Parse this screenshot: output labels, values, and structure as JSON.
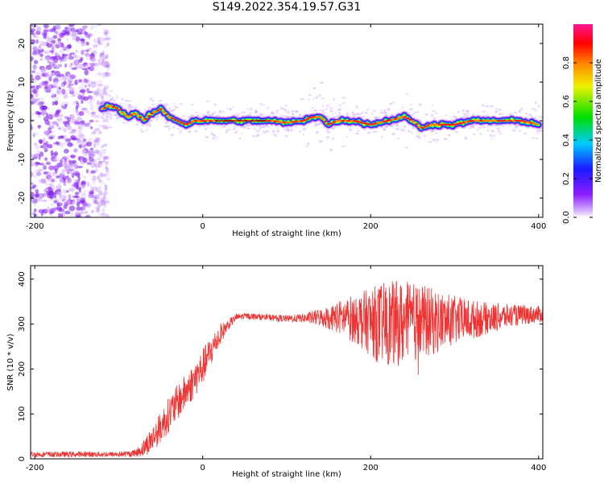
{
  "title": "S149.2022.354.19.57.G31",
  "chart_data": [
    {
      "type": "heatmap",
      "xlabel": "Height of straight line (km)",
      "ylabel": "Frequency (Hz)",
      "xlim": [
        -205,
        405
      ],
      "ylim": [
        -25,
        25
      ],
      "xticks": [
        -200,
        0,
        200,
        400
      ],
      "yticks": [
        -20,
        -10,
        0,
        10,
        20
      ],
      "colorbar": {
        "label": "Normalized spectral amplitude",
        "range": [
          0,
          1
        ],
        "ticks": [
          "0.0",
          "0.2",
          "0.4",
          "0.6",
          "0.8"
        ],
        "colormap": [
          "#ffffff",
          "#d9b8ff",
          "#8b1cff",
          "#1a1aff",
          "#00c8ff",
          "#00e000",
          "#f0f000",
          "#ff8000",
          "#ff0000",
          "#ff1493"
        ]
      },
      "noise_region_x": [
        -205,
        -120
      ],
      "ridge": {
        "x": [
          -120,
          -110,
          -100,
          -90,
          -80,
          -70,
          -60,
          -50,
          -40,
          -30,
          -20,
          -10,
          0,
          20,
          40,
          60,
          80,
          100,
          120,
          130,
          140,
          150,
          160,
          180,
          200,
          220,
          240,
          250,
          260,
          270,
          280,
          300,
          320,
          340,
          360,
          380,
          400
        ],
        "frequency": [
          3,
          4,
          3,
          1,
          2,
          0,
          2,
          3,
          1,
          0,
          -1,
          0,
          0,
          0,
          0,
          0,
          0,
          -0.5,
          0,
          1,
          1,
          -1,
          0,
          0,
          -1,
          0,
          1,
          0,
          -2,
          -1,
          -1,
          -1,
          0,
          0,
          0,
          0,
          -1
        ]
      }
    },
    {
      "type": "line",
      "xlabel": "Height of straight line (km)",
      "ylabel": "SNR (10 * v/v)",
      "xlim": [
        -205,
        405
      ],
      "ylim": [
        0,
        430
      ],
      "xticks": [
        -200,
        0,
        200,
        400
      ],
      "yticks": [
        0,
        100,
        200,
        300,
        400
      ],
      "color": "#ee3333",
      "envelope": {
        "x": [
          -205,
          -100,
          -80,
          -70,
          -60,
          -50,
          -40,
          -30,
          -20,
          -10,
          0,
          10,
          20,
          30,
          40,
          50,
          80,
          100,
          120,
          140,
          160,
          180,
          200,
          210,
          220,
          240,
          260,
          280,
          300,
          320,
          340,
          360,
          380,
          405
        ],
        "mean": [
          10,
          10,
          12,
          25,
          45,
          70,
          100,
          125,
          150,
          175,
          205,
          240,
          275,
          298,
          315,
          318,
          315,
          312,
          313,
          315,
          315,
          312,
          305,
          300,
          300,
          302,
          305,
          305,
          308,
          310,
          313,
          317,
          320,
          322
        ],
        "spread": [
          6,
          6,
          8,
          20,
          30,
          35,
          40,
          40,
          40,
          40,
          40,
          35,
          25,
          12,
          8,
          7,
          7,
          8,
          10,
          20,
          35,
          55,
          75,
          90,
          95,
          95,
          85,
          70,
          55,
          45,
          35,
          28,
          22,
          18
        ]
      }
    }
  ]
}
